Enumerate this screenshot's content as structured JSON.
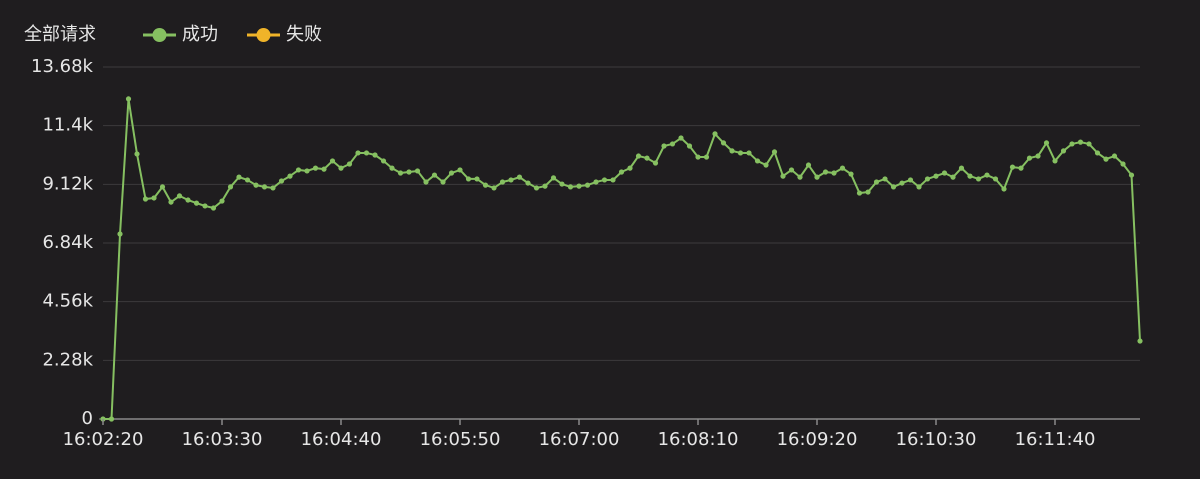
{
  "chart_data": {
    "type": "line",
    "title": "全部请求",
    "categories": [
      "16:02:20",
      null,
      null,
      null,
      null,
      null,
      null,
      null,
      null,
      null,
      null,
      null,
      null,
      null,
      "16:03:30",
      null,
      null,
      null,
      null,
      null,
      null,
      null,
      null,
      null,
      null,
      null,
      null,
      null,
      "16:04:40",
      null,
      null,
      null,
      null,
      null,
      null,
      null,
      null,
      null,
      null,
      null,
      null,
      null,
      "16:05:50",
      null,
      null,
      null,
      null,
      null,
      null,
      null,
      null,
      null,
      null,
      null,
      null,
      null,
      "16:07:00",
      null,
      null,
      null,
      null,
      null,
      null,
      null,
      null,
      null,
      null,
      null,
      null,
      null,
      "16:08:10",
      null,
      null,
      null,
      null,
      null,
      null,
      null,
      null,
      null,
      null,
      null,
      null,
      null,
      "16:09:20",
      null,
      null,
      null,
      null,
      null,
      null,
      null,
      null,
      null,
      null,
      null,
      null,
      null,
      "16:10:30",
      null,
      null,
      null,
      null,
      null,
      null,
      null,
      null,
      null,
      null,
      null,
      null,
      null,
      "16:11:40",
      null,
      null,
      null,
      null,
      null,
      null,
      null,
      null,
      null,
      null
    ],
    "series": [
      {
        "name": "成功",
        "color": "#86c061",
        "values": [
          0,
          0,
          7190,
          12440,
          10300,
          8550,
          8590,
          9020,
          8430,
          8670,
          8510,
          8390,
          8280,
          8200,
          8470,
          9020,
          9400,
          9290,
          9090,
          9020,
          8980,
          9250,
          9440,
          9680,
          9640,
          9750,
          9710,
          10030,
          9750,
          9910,
          10340,
          10340,
          10260,
          10030,
          9750,
          9560,
          9600,
          9640,
          9210,
          9480,
          9210,
          9560,
          9680,
          9330,
          9330,
          9090,
          8980,
          9210,
          9290,
          9400,
          9170,
          8980,
          9050,
          9370,
          9130,
          9020,
          9050,
          9090,
          9210,
          9290,
          9290,
          9600,
          9750,
          10220,
          10140,
          9950,
          10610,
          10690,
          10920,
          10610,
          10180,
          10180,
          11080,
          10730,
          10420,
          10340,
          10340,
          10030,
          9870,
          10380,
          9440,
          9680,
          9400,
          9870,
          9400,
          9600,
          9560,
          9750,
          9520,
          8780,
          8820,
          9210,
          9330,
          9020,
          9170,
          9290,
          9020,
          9330,
          9440,
          9560,
          9400,
          9750,
          9440,
          9330,
          9480,
          9330,
          8940,
          9790,
          9750,
          10140,
          10220,
          10730,
          10030,
          10420,
          10690,
          10760,
          10690,
          10340,
          10100,
          10220,
          9910,
          9480,
          3030
        ]
      },
      {
        "name": "失败",
        "color": "#f0b429",
        "values": [
          null,
          null,
          null,
          null,
          null,
          null,
          null,
          null,
          null,
          null,
          null,
          null,
          null,
          null,
          null,
          null,
          null,
          null,
          null,
          null,
          null,
          null,
          null,
          null,
          null,
          null,
          null,
          null,
          null,
          null,
          null,
          null,
          null,
          null,
          null,
          null,
          null,
          null,
          null,
          null,
          null,
          null,
          null,
          null,
          null,
          null,
          null,
          null,
          null,
          null,
          null,
          null,
          null,
          null,
          null,
          null,
          null,
          null,
          null,
          null,
          null,
          null,
          null,
          null,
          null,
          null,
          null,
          null,
          null,
          null,
          null,
          null,
          null,
          null,
          null,
          null,
          null,
          null,
          null,
          null,
          null,
          null,
          null,
          null,
          null,
          null,
          null,
          null,
          null,
          null,
          null,
          null,
          null,
          null,
          null,
          null,
          null,
          null,
          null,
          null,
          null,
          null,
          null,
          null,
          null,
          null,
          null,
          null,
          null,
          null,
          null,
          null,
          null,
          null,
          null,
          null,
          null,
          null,
          null,
          null,
          null,
          null,
          null
        ]
      }
    ],
    "ylim": [
      0,
      13680
    ],
    "yticks": [
      0,
      {
        "value": 2280,
        "label": "2.28k"
      },
      {
        "value": 4560,
        "label": "4.56k"
      },
      {
        "value": 6840,
        "label": "6.84k"
      },
      {
        "value": 9120,
        "label": "9.12k"
      },
      {
        "value": 11400,
        "label": "11.4k"
      },
      {
        "value": 13680,
        "label": "13.68k"
      }
    ],
    "grid": true
  }
}
